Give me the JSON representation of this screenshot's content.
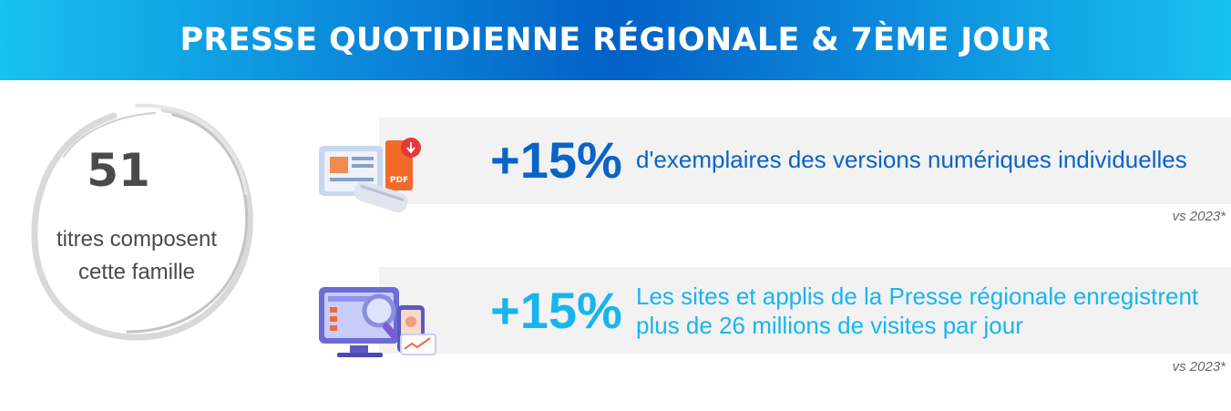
{
  "header": {
    "title": "PRESSE QUOTIDIENNE RÉGIONALE & 7ÈME JOUR"
  },
  "summary": {
    "count": "51",
    "label_line1": "titres composent",
    "label_line2": "cette famille"
  },
  "stats": [
    {
      "value": "+15%",
      "description": "d'exemplaires des versions numériques individuelles",
      "note": "vs 2023*",
      "icon": "newspaper-pdf-icon",
      "color": "#0a63c9"
    },
    {
      "value": "+15%",
      "description_line1": "Les sites et applis de la Presse régionale enregistrent",
      "description_line2": "plus de 26 millions de visites par jour",
      "note": "vs 2023*",
      "icon": "computer-analytics-icon",
      "color": "#17b5ef"
    }
  ],
  "colors": {
    "banner_dark": "#0260c6",
    "banner_light": "#17c2ef",
    "band": "#f2f2f2"
  }
}
